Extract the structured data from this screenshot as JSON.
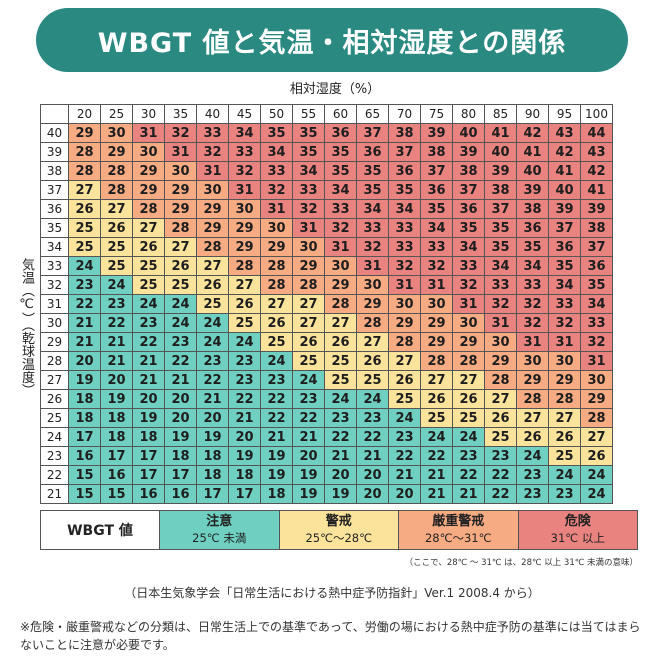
{
  "header": {
    "title": "WBGT 値と気温・相対湿度との関係"
  },
  "axes": {
    "humidity_label": "相対湿度（%）",
    "temperature_label": "気温（℃）（乾球温度）"
  },
  "colors": {
    "caution": "#6fd0c2",
    "warning": "#fbe39b",
    "severe_warning": "#f6ab83",
    "danger": "#e98380",
    "title_bar": "#2a8a82"
  },
  "table": {
    "humidity_columns": [
      "20",
      "25",
      "30",
      "35",
      "40",
      "45",
      "50",
      "55",
      "60",
      "65",
      "70",
      "75",
      "80",
      "85",
      "90",
      "95",
      "100"
    ],
    "rows": [
      {
        "temp": "40",
        "values": [
          29,
          30,
          31,
          32,
          33,
          34,
          35,
          35,
          36,
          37,
          38,
          39,
          40,
          41,
          42,
          43,
          44
        ]
      },
      {
        "temp": "39",
        "values": [
          28,
          29,
          30,
          31,
          32,
          33,
          34,
          35,
          35,
          36,
          37,
          38,
          39,
          40,
          41,
          42,
          43
        ]
      },
      {
        "temp": "38",
        "values": [
          28,
          28,
          29,
          30,
          31,
          32,
          33,
          34,
          35,
          35,
          36,
          37,
          38,
          39,
          40,
          41,
          42
        ]
      },
      {
        "temp": "37",
        "values": [
          27,
          28,
          29,
          29,
          30,
          31,
          32,
          33,
          34,
          35,
          35,
          36,
          37,
          38,
          39,
          40,
          41
        ]
      },
      {
        "temp": "36",
        "values": [
          26,
          27,
          28,
          29,
          29,
          30,
          31,
          32,
          33,
          34,
          34,
          35,
          36,
          37,
          38,
          39,
          39
        ]
      },
      {
        "temp": "35",
        "values": [
          25,
          26,
          27,
          28,
          29,
          29,
          30,
          31,
          32,
          33,
          33,
          34,
          35,
          35,
          36,
          37,
          38
        ]
      },
      {
        "temp": "34",
        "values": [
          25,
          25,
          26,
          27,
          28,
          29,
          29,
          30,
          31,
          32,
          33,
          33,
          34,
          35,
          35,
          36,
          37
        ]
      },
      {
        "temp": "33",
        "values": [
          24,
          25,
          25,
          26,
          27,
          28,
          28,
          29,
          30,
          31,
          32,
          32,
          33,
          34,
          34,
          35,
          36
        ]
      },
      {
        "temp": "32",
        "values": [
          23,
          24,
          25,
          25,
          26,
          27,
          28,
          28,
          29,
          30,
          31,
          31,
          32,
          33,
          33,
          34,
          35
        ]
      },
      {
        "temp": "31",
        "values": [
          22,
          23,
          24,
          24,
          25,
          26,
          27,
          27,
          28,
          29,
          30,
          30,
          31,
          32,
          32,
          33,
          34
        ]
      },
      {
        "temp": "30",
        "values": [
          21,
          22,
          23,
          24,
          24,
          25,
          26,
          27,
          27,
          28,
          29,
          29,
          30,
          31,
          32,
          32,
          33
        ]
      },
      {
        "temp": "29",
        "values": [
          21,
          21,
          22,
          23,
          24,
          24,
          25,
          26,
          26,
          27,
          28,
          29,
          29,
          30,
          31,
          31,
          32
        ]
      },
      {
        "temp": "28",
        "values": [
          20,
          21,
          21,
          22,
          23,
          23,
          24,
          25,
          25,
          26,
          27,
          28,
          28,
          29,
          30,
          30,
          31
        ]
      },
      {
        "temp": "27",
        "values": [
          19,
          20,
          21,
          21,
          22,
          23,
          23,
          24,
          25,
          25,
          26,
          27,
          27,
          28,
          29,
          29,
          30
        ]
      },
      {
        "temp": "26",
        "values": [
          18,
          19,
          20,
          20,
          21,
          22,
          22,
          23,
          24,
          24,
          25,
          26,
          26,
          27,
          28,
          28,
          29
        ]
      },
      {
        "temp": "25",
        "values": [
          18,
          18,
          19,
          20,
          20,
          21,
          22,
          22,
          23,
          23,
          24,
          25,
          25,
          26,
          27,
          27,
          28
        ]
      },
      {
        "temp": "24",
        "values": [
          17,
          18,
          18,
          19,
          19,
          20,
          21,
          21,
          22,
          22,
          23,
          24,
          24,
          25,
          26,
          26,
          27
        ]
      },
      {
        "temp": "23",
        "values": [
          16,
          17,
          17,
          18,
          18,
          19,
          19,
          20,
          21,
          21,
          22,
          22,
          23,
          23,
          24,
          25,
          26
        ]
      },
      {
        "temp": "22",
        "values": [
          15,
          16,
          17,
          17,
          18,
          18,
          19,
          19,
          20,
          20,
          21,
          21,
          22,
          22,
          23,
          24,
          24
        ]
      },
      {
        "temp": "21",
        "values": [
          15,
          15,
          16,
          16,
          17,
          17,
          18,
          19,
          19,
          20,
          20,
          21,
          21,
          22,
          23,
          23,
          24
        ]
      }
    ]
  },
  "legend": {
    "head": "WBGT 値",
    "items": [
      {
        "name": "注意",
        "range": "25℃ 未満",
        "level": "caution"
      },
      {
        "name": "警戒",
        "range": "25℃〜28℃",
        "level": "warning"
      },
      {
        "name": "厳重警戒",
        "range": "28℃〜31℃",
        "level": "severe"
      },
      {
        "name": "危険",
        "range": "31℃ 以上",
        "level": "danger"
      }
    ],
    "note": "（ここで、28℃ 〜 31℃ は、28℃ 以上 31℃ 未満の意味）"
  },
  "source": "（日本生気象学会「日常生活における熱中症予防指針」Ver.1 2008.4 から）",
  "footnote": "※危険・厳重警戒などの分類は、日常生活上での基準であって、労働の場における熱中症予防の基準には当てはまらないことに注意が必要です。"
}
